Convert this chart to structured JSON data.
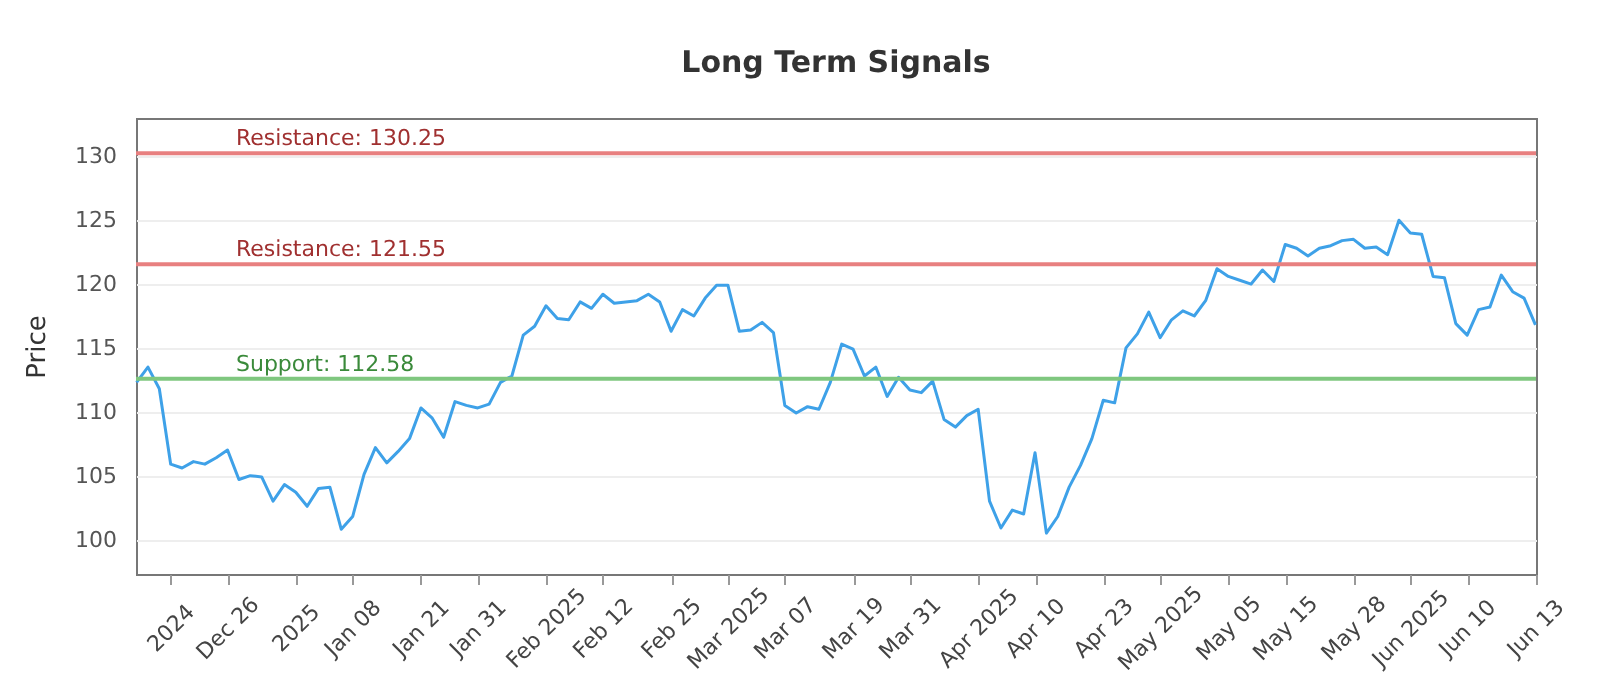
{
  "chart_data": {
    "type": "line",
    "title": "Long Term Signals",
    "ylabel": "Price",
    "categories": [
      null,
      null,
      null,
      "2024",
      null,
      null,
      null,
      null,
      "Dec 26",
      null,
      null,
      null,
      null,
      null,
      "2025",
      null,
      null,
      null,
      null,
      "Jan 08",
      null,
      null,
      null,
      null,
      null,
      "Jan 21",
      null,
      null,
      null,
      null,
      "Jan 31",
      null,
      null,
      null,
      null,
      null,
      "Feb 2025",
      null,
      null,
      null,
      null,
      "Feb 12",
      null,
      null,
      null,
      null,
      null,
      "Feb 25",
      null,
      null,
      null,
      null,
      "Mar 2025",
      null,
      null,
      null,
      null,
      "Mar 07",
      null,
      null,
      null,
      null,
      null,
      "Mar 19",
      null,
      null,
      null,
      null,
      "Mar 31",
      null,
      null,
      null,
      null,
      null,
      "Apr 2025",
      null,
      null,
      null,
      null,
      "Apr 10",
      null,
      null,
      null,
      null,
      null,
      "Apr 23",
      null,
      null,
      null,
      null,
      "May 2025",
      null,
      null,
      null,
      null,
      null,
      "May 05",
      null,
      null,
      null,
      null,
      "May 15",
      null,
      null,
      null,
      null,
      null,
      "May 28",
      null,
      null,
      null,
      null,
      "Jun 2025",
      null,
      null,
      null,
      null,
      "Jun 10",
      null,
      null,
      null,
      null,
      null,
      "Jun 13"
    ],
    "values": [
      112.3,
      113.5,
      111.8,
      105.9,
      105.6,
      106.1,
      105.9,
      106.4,
      107.0,
      104.7,
      105.0,
      104.9,
      103.0,
      104.3,
      103.7,
      102.6,
      104.0,
      104.1,
      100.8,
      101.8,
      105.1,
      107.2,
      106.0,
      106.9,
      107.9,
      110.3,
      109.5,
      108.0,
      110.8,
      110.5,
      110.3,
      110.6,
      112.3,
      112.8,
      116.0,
      116.7,
      118.3,
      117.3,
      117.2,
      118.6,
      118.1,
      119.2,
      118.5,
      118.6,
      118.7,
      119.2,
      118.6,
      116.3,
      118.0,
      117.5,
      118.9,
      119.9,
      119.9,
      116.3,
      116.4,
      117.0,
      116.2,
      110.5,
      109.9,
      110.4,
      110.2,
      112.3,
      115.3,
      114.9,
      112.8,
      113.5,
      111.2,
      112.7,
      111.7,
      111.5,
      112.4,
      109.4,
      108.8,
      109.7,
      110.2,
      103.0,
      100.9,
      102.3,
      102.0,
      106.8,
      100.5,
      101.8,
      104.1,
      105.8,
      107.9,
      110.9,
      110.7,
      115.0,
      116.1,
      117.8,
      115.8,
      117.2,
      117.9,
      117.5,
      118.7,
      121.2,
      120.6,
      120.3,
      120.0,
      121.1,
      120.2,
      123.1,
      122.8,
      122.2,
      122.8,
      123.0,
      123.4,
      123.5,
      122.8,
      122.9,
      122.3,
      125.0,
      124.0,
      123.9,
      120.6,
      120.5,
      116.9,
      116.0,
      118.0,
      118.2,
      120.7,
      119.4,
      118.9,
      116.8
    ],
    "color": "#3ea1e8",
    "ylim": [
      97.3,
      133
    ],
    "yticks": [
      100,
      105,
      110,
      115,
      120,
      125,
      130
    ],
    "grid": "y",
    "ref_lines": [
      {
        "axis": "y",
        "value": 130.25,
        "label": "Resistance: 130.25",
        "color": "#e88080"
      },
      {
        "axis": "y",
        "value": 121.55,
        "label": "Resistance: 121.55",
        "color": "#e88080"
      },
      {
        "axis": "y",
        "value": 112.58,
        "label": "Support: 112.58",
        "color": "#7fc77f"
      }
    ]
  }
}
